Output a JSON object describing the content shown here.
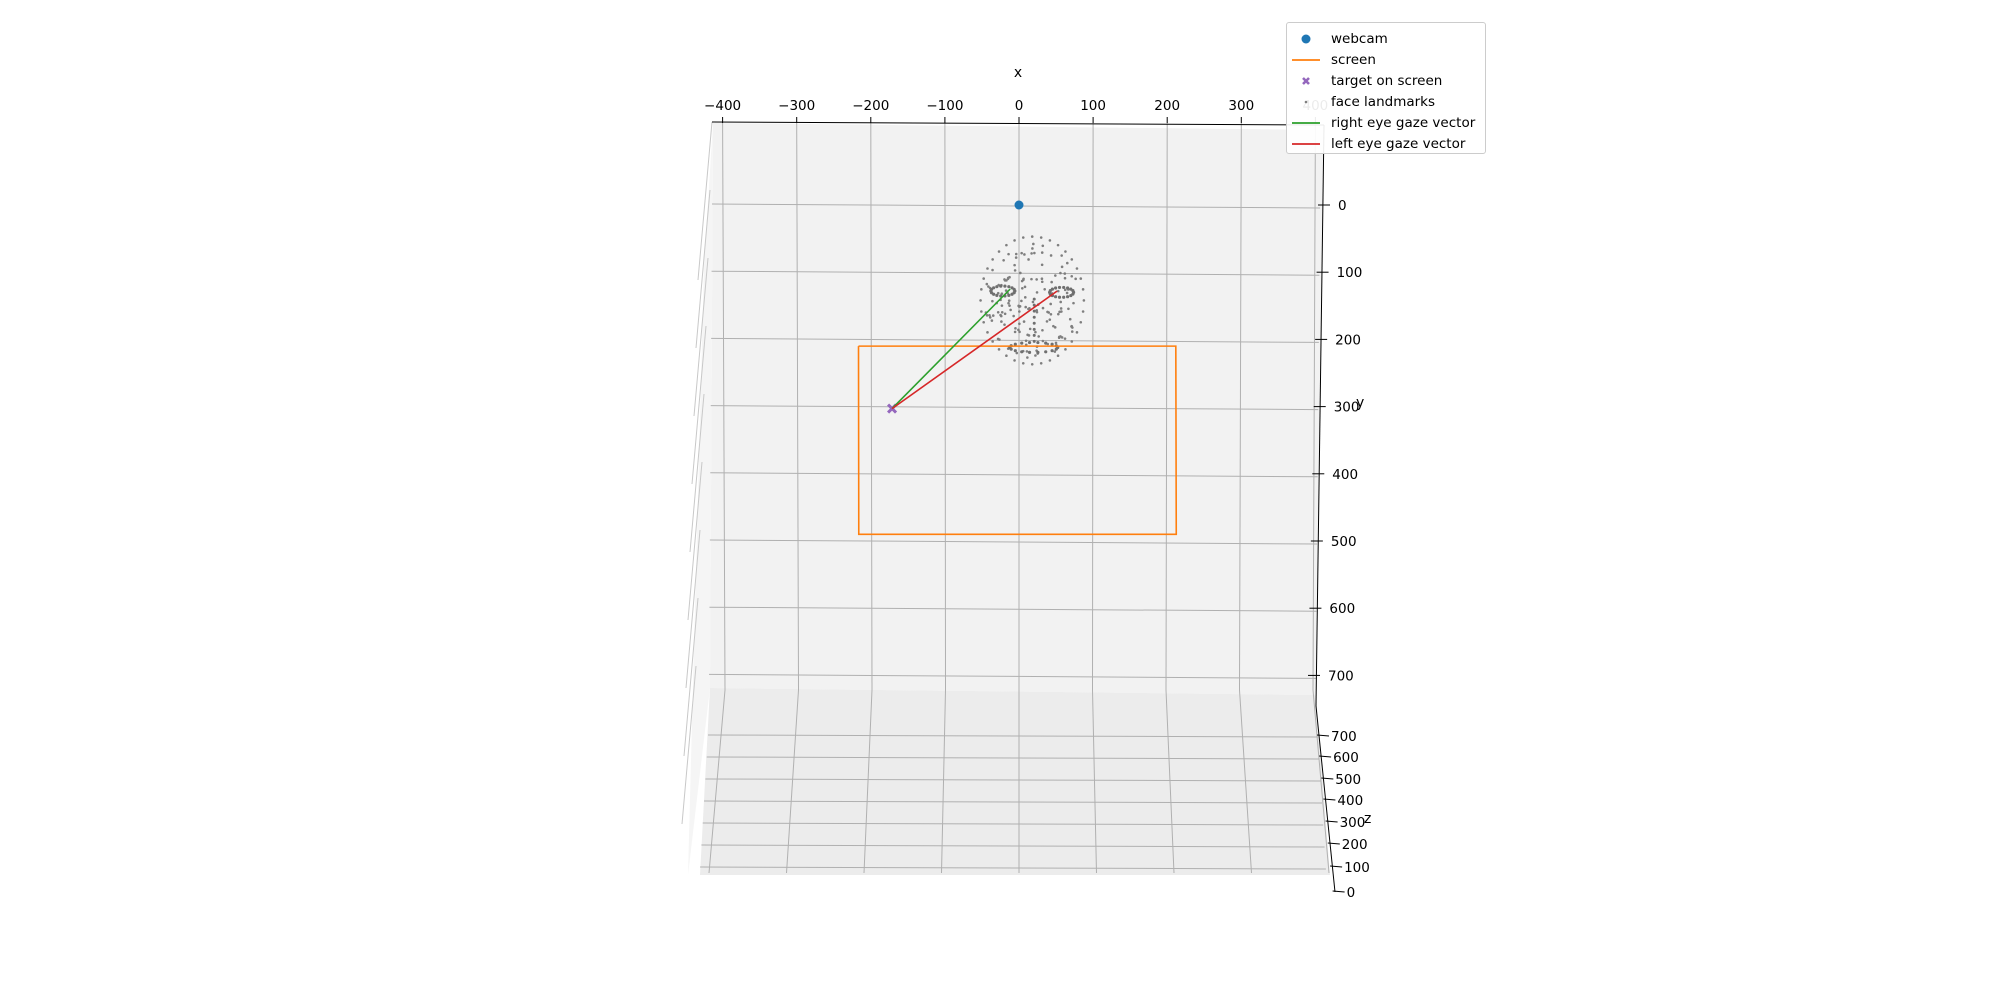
{
  "chart_data": {
    "type": "scatter",
    "view": "3d",
    "xlabel": "x",
    "ylabel": "y",
    "zlabel": "z",
    "x_ticks": [
      "−400",
      "−300",
      "−200",
      "−100",
      "0",
      "100",
      "200",
      "300",
      "400"
    ],
    "y_ticks": [
      "0",
      "100",
      "200",
      "300",
      "400",
      "500",
      "600",
      "700"
    ],
    "z_ticks": [
      "700",
      "600",
      "500",
      "400",
      "300",
      "200",
      "100",
      "0"
    ],
    "xlim": [
      -410,
      410
    ],
    "ylim": [
      -10,
      750
    ],
    "zlim": [
      0,
      750
    ],
    "grid": true,
    "legend_position": "top-right",
    "series": [
      {
        "name": "webcam",
        "kind": "marker",
        "color": "#1f77b4",
        "points": [
          [
            0,
            0,
            0
          ]
        ]
      },
      {
        "name": "screen",
        "kind": "line",
        "color": "#ff7f0e",
        "points": [
          [
            -218,
            210,
            0
          ],
          [
            213,
            210,
            0
          ],
          [
            212,
            490,
            0
          ],
          [
            -216,
            490,
            0
          ],
          [
            -218,
            210,
            0
          ]
        ]
      },
      {
        "name": "target on screen",
        "kind": "x-marker",
        "color": "#9467bd",
        "points": [
          [
            -172,
            303,
            0
          ]
        ]
      },
      {
        "name": "face landmarks",
        "kind": "dots",
        "color": "#7f7f7f"
      },
      {
        "name": "right eye gaze vector",
        "kind": "line",
        "color": "#2ca02c",
        "points": [
          [
            -12,
            125,
            0
          ],
          [
            -172,
            303,
            0
          ]
        ]
      },
      {
        "name": "left eye gaze vector",
        "kind": "line",
        "color": "#d62728",
        "points": [
          [
            52,
            128,
            0
          ],
          [
            -172,
            303,
            0
          ]
        ]
      }
    ],
    "face": {
      "center": [
        18,
        142
      ],
      "rx": 70,
      "ry": 95,
      "right_eye": [
        -22,
        128
      ],
      "left_eye": [
        58,
        130
      ],
      "mouth": [
        20,
        212
      ]
    }
  }
}
